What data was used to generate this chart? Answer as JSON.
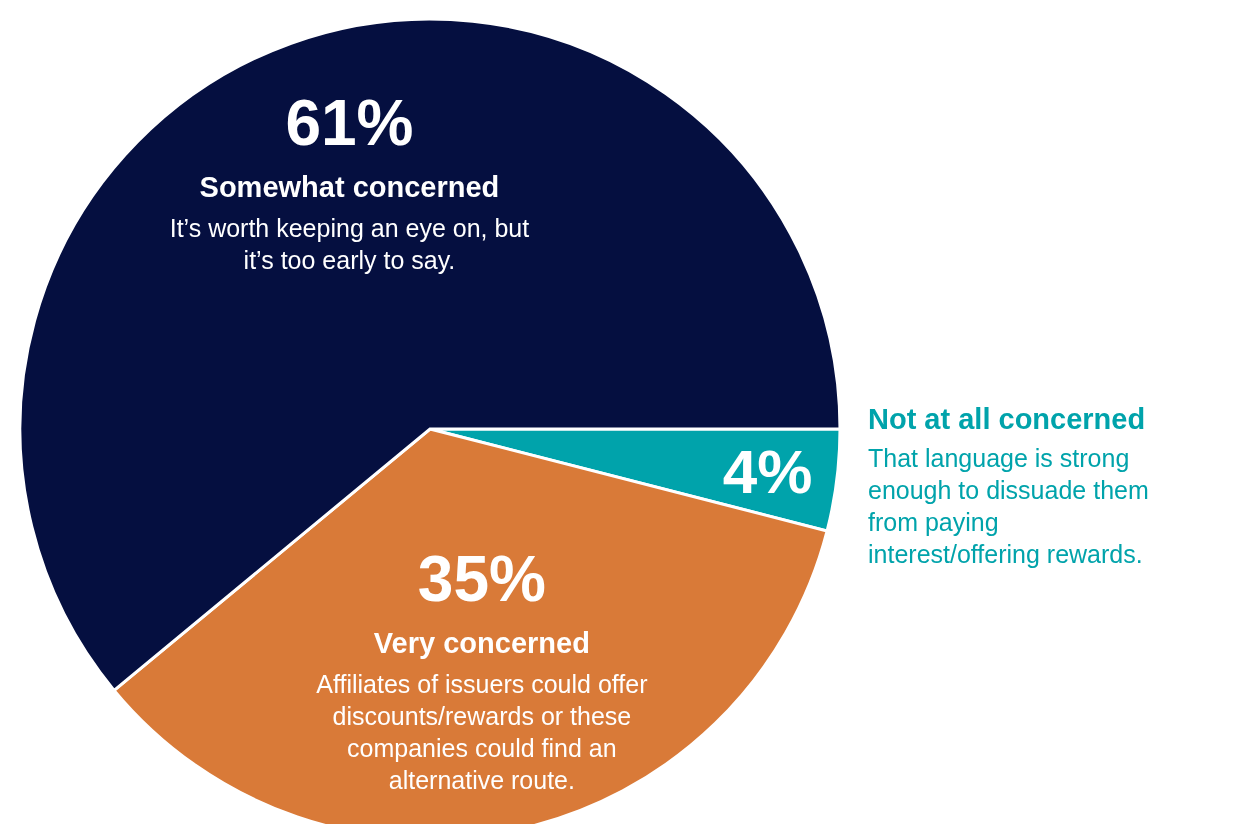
{
  "chart_data": {
    "type": "pie",
    "categories": [
      "Not at all concerned",
      "Very concerned",
      "Somewhat concerned"
    ],
    "values": [
      4,
      35,
      61
    ],
    "colors": [
      "#00a3ab",
      "#d97a38",
      "#050f40"
    ],
    "value_labels": [
      "4%",
      "35%",
      "61%"
    ],
    "annotations": [
      "That language is strong enough to dissuade them from paying interest/offering rewards.",
      "Affiliates of issuers could offer discounts/rewards or these companies could find an alternative route.",
      "It’s worth keeping an eye on, but it’s too early to say."
    ],
    "legend": false
  }
}
